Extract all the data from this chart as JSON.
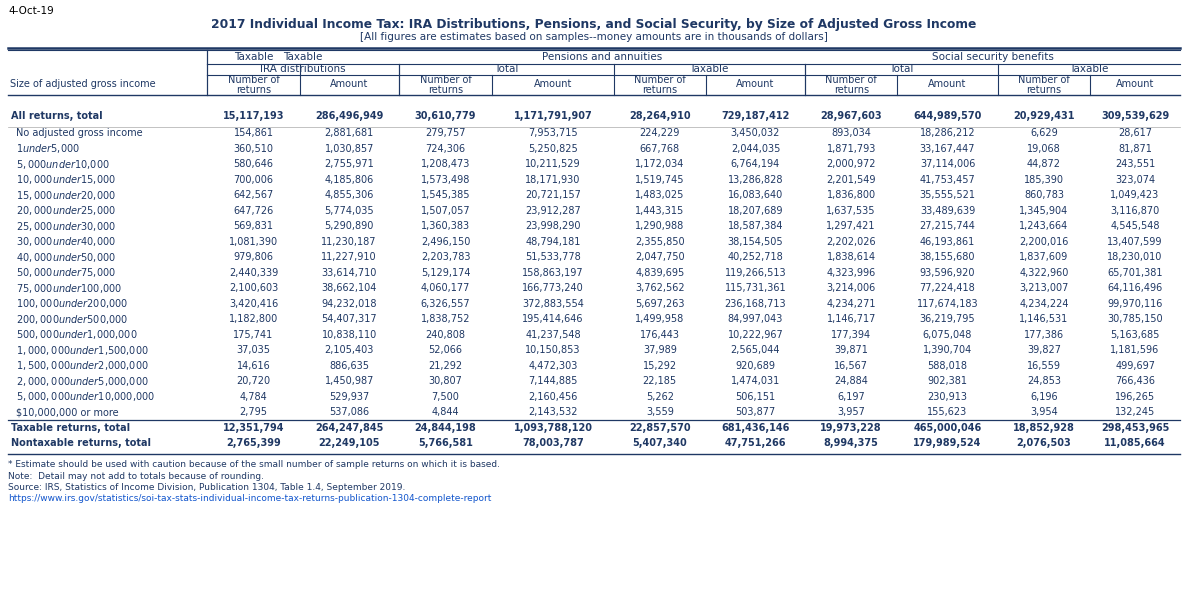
{
  "date_label": "4-Oct-19",
  "title": "2017 Individual Income Tax: IRA Distributions, Pensions, and Social Security, by Size of Adjusted Gross Income",
  "subtitle": "[All figures are estimates based on samples--money amounts are in thousands of dollars]",
  "footnote1": "* Estimate should be used with caution because of the small number of sample returns on which it is based.",
  "footnote2": "Note:  Detail may not add to totals because of rounding.",
  "footnote3": "Source: IRS, Statistics of Income Division, Publication 1304, Table 1.4, September 2019.",
  "footnote4": "https://www.irs.gov/statistics/soi-tax-stats-individual-income-tax-returns-publication-1304-complete-report",
  "rows": [
    {
      "label": "All returns, total",
      "bold": true,
      "extra_space_above": true,
      "values": [
        "15,117,193",
        "286,496,949",
        "30,610,779",
        "1,171,791,907",
        "28,264,910",
        "729,187,412",
        "28,967,603",
        "644,989,570",
        "20,929,431",
        "309,539,629"
      ]
    },
    {
      "label": "No adjusted gross income",
      "bold": false,
      "extra_space_above": false,
      "values": [
        "154,861",
        "2,881,681",
        "279,757",
        "7,953,715",
        "224,229",
        "3,450,032",
        "893,034",
        "18,286,212",
        "6,629",
        "28,617"
      ]
    },
    {
      "label": "$1 under $5,000",
      "bold": false,
      "extra_space_above": false,
      "values": [
        "360,510",
        "1,030,857",
        "724,306",
        "5,250,825",
        "667,768",
        "2,044,035",
        "1,871,793",
        "33,167,447",
        "19,068",
        "81,871"
      ]
    },
    {
      "label": "$5,000 under $10,000",
      "bold": false,
      "extra_space_above": false,
      "values": [
        "580,646",
        "2,755,971",
        "1,208,473",
        "10,211,529",
        "1,172,034",
        "6,764,194",
        "2,000,972",
        "37,114,006",
        "44,872",
        "243,551"
      ]
    },
    {
      "label": "$10,000 under $15,000",
      "bold": false,
      "extra_space_above": false,
      "values": [
        "700,006",
        "4,185,806",
        "1,573,498",
        "18,171,930",
        "1,519,745",
        "13,286,828",
        "2,201,549",
        "41,753,457",
        "185,390",
        "323,074"
      ]
    },
    {
      "label": "$15,000 under $20,000",
      "bold": false,
      "extra_space_above": false,
      "values": [
        "642,567",
        "4,855,306",
        "1,545,385",
        "20,721,157",
        "1,483,025",
        "16,083,640",
        "1,836,800",
        "35,555,521",
        "860,783",
        "1,049,423"
      ]
    },
    {
      "label": "$20,000 under $25,000",
      "bold": false,
      "extra_space_above": false,
      "values": [
        "647,726",
        "5,774,035",
        "1,507,057",
        "23,912,287",
        "1,443,315",
        "18,207,689",
        "1,637,535",
        "33,489,639",
        "1,345,904",
        "3,116,870"
      ]
    },
    {
      "label": "$25,000 under $30,000",
      "bold": false,
      "extra_space_above": false,
      "values": [
        "569,831",
        "5,290,890",
        "1,360,383",
        "23,998,290",
        "1,290,988",
        "18,587,384",
        "1,297,421",
        "27,215,744",
        "1,243,664",
        "4,545,548"
      ]
    },
    {
      "label": "$30,000 under $40,000",
      "bold": false,
      "extra_space_above": false,
      "values": [
        "1,081,390",
        "11,230,187",
        "2,496,150",
        "48,794,181",
        "2,355,850",
        "38,154,505",
        "2,202,026",
        "46,193,861",
        "2,200,016",
        "13,407,599"
      ]
    },
    {
      "label": "$40,000 under $50,000",
      "bold": false,
      "extra_space_above": false,
      "values": [
        "979,806",
        "11,227,910",
        "2,203,783",
        "51,533,778",
        "2,047,750",
        "40,252,718",
        "1,838,614",
        "38,155,680",
        "1,837,609",
        "18,230,010"
      ]
    },
    {
      "label": "$50,000 under $75,000",
      "bold": false,
      "extra_space_above": false,
      "values": [
        "2,440,339",
        "33,614,710",
        "5,129,174",
        "158,863,197",
        "4,839,695",
        "119,266,513",
        "4,323,996",
        "93,596,920",
        "4,322,960",
        "65,701,381"
      ]
    },
    {
      "label": "$75,000 under $100,000",
      "bold": false,
      "extra_space_above": false,
      "values": [
        "2,100,603",
        "38,662,104",
        "4,060,177",
        "166,773,240",
        "3,762,562",
        "115,731,361",
        "3,214,006",
        "77,224,418",
        "3,213,007",
        "64,116,496"
      ]
    },
    {
      "label": "$100,000 under $200,000",
      "bold": false,
      "extra_space_above": false,
      "values": [
        "3,420,416",
        "94,232,018",
        "6,326,557",
        "372,883,554",
        "5,697,263",
        "236,168,713",
        "4,234,271",
        "117,674,183",
        "4,234,224",
        "99,970,116"
      ]
    },
    {
      "label": "$200,000 under $500,000",
      "bold": false,
      "extra_space_above": false,
      "values": [
        "1,182,800",
        "54,407,317",
        "1,838,752",
        "195,414,646",
        "1,499,958",
        "84,997,043",
        "1,146,717",
        "36,219,795",
        "1,146,531",
        "30,785,150"
      ]
    },
    {
      "label": "$500,000 under $1,000,000",
      "bold": false,
      "extra_space_above": false,
      "values": [
        "175,741",
        "10,838,110",
        "240,808",
        "41,237,548",
        "176,443",
        "10,222,967",
        "177,394",
        "6,075,048",
        "177,386",
        "5,163,685"
      ]
    },
    {
      "label": "$1,000,000 under $1,500,000",
      "bold": false,
      "extra_space_above": false,
      "values": [
        "37,035",
        "2,105,403",
        "52,066",
        "10,150,853",
        "37,989",
        "2,565,044",
        "39,871",
        "1,390,704",
        "39,827",
        "1,181,596"
      ]
    },
    {
      "label": "$1,500,000 under $2,000,000",
      "bold": false,
      "extra_space_above": false,
      "values": [
        "14,616",
        "886,635",
        "21,292",
        "4,472,303",
        "15,292",
        "920,689",
        "16,567",
        "588,018",
        "16,559",
        "499,697"
      ]
    },
    {
      "label": "$2,000,000 under $5,000,000",
      "bold": false,
      "extra_space_above": false,
      "values": [
        "20,720",
        "1,450,987",
        "30,807",
        "7,144,885",
        "22,185",
        "1,474,031",
        "24,884",
        "902,381",
        "24,853",
        "766,436"
      ]
    },
    {
      "label": "$5,000,000 under $10,000,000",
      "bold": false,
      "extra_space_above": false,
      "values": [
        "4,784",
        "529,937",
        "7,500",
        "2,160,456",
        "5,262",
        "506,151",
        "6,197",
        "230,913",
        "6,196",
        "196,265"
      ]
    },
    {
      "label": "$10,000,000 or more",
      "bold": false,
      "extra_space_above": false,
      "values": [
        "2,795",
        "537,086",
        "4,844",
        "2,143,532",
        "3,559",
        "503,877",
        "3,957",
        "155,623",
        "3,954",
        "132,245"
      ]
    },
    {
      "label": "Taxable returns, total",
      "bold": true,
      "extra_space_above": false,
      "values": [
        "12,351,794",
        "264,247,845",
        "24,844,198",
        "1,093,788,120",
        "22,857,570",
        "681,436,146",
        "19,973,228",
        "465,000,046",
        "18,852,928",
        "298,453,965"
      ]
    },
    {
      "label": "Nontaxable returns, total",
      "bold": true,
      "extra_space_above": false,
      "values": [
        "2,765,399",
        "22,249,105",
        "5,766,581",
        "78,003,787",
        "5,407,340",
        "47,751,266",
        "8,994,375",
        "179,989,524",
        "2,076,503",
        "11,085,664"
      ]
    }
  ],
  "text_color": "#1f3864",
  "header_line_color": "#1f3864",
  "title_color": "#1f3864",
  "url_color": "#1155cc",
  "black": "#000000"
}
